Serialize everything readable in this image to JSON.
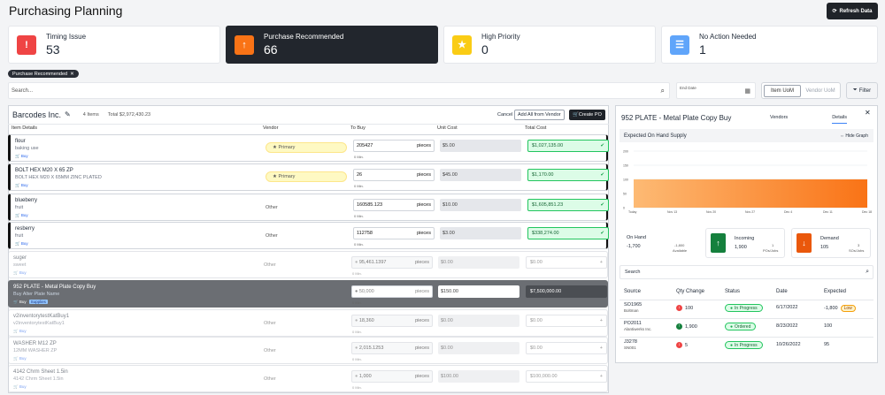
{
  "header": {
    "title": "Purchasing Planning",
    "refresh_label": "Refresh Data"
  },
  "cards": [
    {
      "label": "Timing Issue",
      "value": "53",
      "color": "#ef4444",
      "icon": "alert-icon"
    },
    {
      "label": "Purchase Recommended",
      "value": "66",
      "color": "#f97316",
      "icon": "arrow-up-icon"
    },
    {
      "label": "High Priority",
      "value": "0",
      "color": "#facc15",
      "icon": "star-icon"
    },
    {
      "label": "No Action Needed",
      "value": "1",
      "color": "#60a5fa",
      "icon": "list-icon"
    }
  ],
  "filter_chip": "Purchase Recommended",
  "search": {
    "placeholder": "Search..."
  },
  "end_date": {
    "label": "End Date"
  },
  "uom": {
    "item": "Item UoM",
    "vendor": "Vendor UoM"
  },
  "filter_label": "Filter",
  "vendor": {
    "name": "Barcodes Inc.",
    "items": "4 Items",
    "total": "Total $2,972,430.23",
    "cancel": "Cancel",
    "add_all": "Add All from Vendor",
    "create_po": "Create PO"
  },
  "columns": {
    "item": "Item Details",
    "vendor": "Vendor",
    "to_buy": "To Buy",
    "unit_cost": "Unit Cost",
    "total_cost": "Total Cost"
  },
  "rows": [
    {
      "name": "flour",
      "sub": "baking use",
      "buy": "Buy",
      "vendor": "Primary",
      "qty": "205427",
      "unit": "pieces",
      "min": "0 Min.",
      "unit_cost": "$5.00",
      "total": "$1,027,135.00"
    },
    {
      "name": "BOLT HEX M20 X 65 ZP",
      "sub": "BOLT HEX M20 X 65MM ZINC PLATED",
      "buy": "Buy",
      "vendor": "Primary",
      "qty": "26",
      "unit": "pieces",
      "min": "0 Min.",
      "unit_cost": "$45.00",
      "total": "$1,170.00"
    },
    {
      "name": "blueberry",
      "sub": "fruit",
      "buy": "Buy",
      "vendor": "Other",
      "qty": "160585.123",
      "unit": "pieces",
      "min": "0 Min.",
      "unit_cost": "$10.00",
      "total": "$1,605,851.23"
    },
    {
      "name": "resberry",
      "sub": "fruit",
      "buy": "Buy",
      "vendor": "Other",
      "qty": "112758",
      "unit": "pieces",
      "min": "0 Min.",
      "unit_cost": "$3.00",
      "total": "$338,274.00"
    },
    {
      "name": "suger",
      "sub": "sweet",
      "buy": "Buy",
      "vendor": "Other",
      "qty": "95,461.1397",
      "unit": "pieces",
      "min": "0 Min.",
      "unit_cost": "$0.00",
      "total": "$0.00"
    },
    {
      "name": "952 PLATE - Metal Plate Copy Buy",
      "sub": "Buy Alter Plate Name",
      "buy": "Buy",
      "tag": "Supplies",
      "vendor": "",
      "qty": "50,000",
      "unit": "pieces",
      "min": "0 Min.",
      "unit_cost": "$150.00",
      "total": "$7,500,000.00"
    },
    {
      "name": "v2inventorytestKatBuy1",
      "sub": "v2inventorytestKatBuy1",
      "buy": "Buy",
      "vendor": "Other",
      "qty": "18,360",
      "unit": "pieces",
      "min": "0 Min.",
      "unit_cost": "$0.00",
      "total": "$0.00"
    },
    {
      "name": "WASHER M12 ZP",
      "sub": "12MM WASHER ZP",
      "buy": "Buy",
      "vendor": "Other",
      "qty": "2,015.1253",
      "unit": "pieces",
      "min": "0 Min.",
      "unit_cost": "$0.00",
      "total": "$0.00"
    },
    {
      "name": "4142 Chrm Sheet 1.5in",
      "sub": "4142 Chrm Sheet 1.5in",
      "buy": "Buy",
      "vendor": "Other",
      "qty": "1,000",
      "unit": "pieces",
      "min": "0 Min.",
      "unit_cost": "$100.00",
      "total": "$100,000.00"
    }
  ],
  "detail": {
    "title": "952 PLATE - Metal Plate Copy Buy",
    "tabs": [
      "Vendors",
      "Details"
    ],
    "section": "Expected On Hand Supply",
    "hide_graph": "Hide Graph",
    "on_hand": {
      "label": "On Hand",
      "value": "-1,700",
      "avail": "-1,800",
      "avail_label": "Available"
    },
    "incoming": {
      "label": "Incoming",
      "value": "1,900",
      "count": "1",
      "count_label": "POs/Jobs"
    },
    "demand": {
      "label": "Demand",
      "value": "105",
      "count": "3",
      "count_label": "SOs/Jobs"
    },
    "search_placeholder": "Search",
    "table_headers": [
      "Source",
      "Qty Change",
      "Status",
      "Date",
      "Expected"
    ],
    "table_rows": [
      {
        "source": "SO1965",
        "party": "Boltman",
        "qty": "100",
        "dir": "down",
        "status": "In Progress",
        "date": "6/17/2022",
        "expected": "-1,800",
        "flag": "Low"
      },
      {
        "source": "PO2011",
        "party": "Alantiwerks Inc.",
        "qty": "1,900",
        "dir": "up",
        "status": "Ordered",
        "date": "8/23/2022",
        "expected": "100",
        "flag": ""
      },
      {
        "source": "J3278",
        "party": "SN001",
        "qty": "5",
        "dir": "down",
        "status": "In Progress",
        "date": "10/26/2022",
        "expected": "95",
        "flag": ""
      }
    ]
  },
  "chart_data": {
    "type": "area",
    "x": [
      "Today",
      "Nov 13",
      "Nov 20",
      "Nov 27",
      "Dec 4",
      "Dec 11",
      "Dec 18"
    ],
    "yticks": [
      "200",
      "150",
      "100",
      "50",
      "0"
    ],
    "ylim": [
      0,
      200
    ],
    "values": [
      100,
      100,
      100,
      100,
      100,
      100,
      100
    ],
    "colors": [
      "#fdba74",
      "#f97316"
    ]
  }
}
